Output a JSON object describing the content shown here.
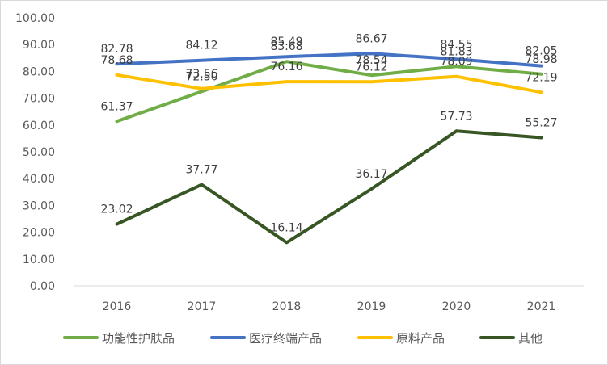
{
  "chart_data": {
    "type": "line",
    "title": "",
    "xlabel": "",
    "ylabel": "",
    "categories": [
      "2016",
      "2017",
      "2018",
      "2019",
      "2020",
      "2021"
    ],
    "ylim": [
      0,
      100
    ],
    "yticks": [
      "0.00",
      "10.00",
      "20.00",
      "30.00",
      "40.00",
      "50.00",
      "60.00",
      "70.00",
      "80.00",
      "90.00",
      "100.00"
    ],
    "grid": false,
    "legend_position": "bottom",
    "series": [
      {
        "name": "功能性护肤品",
        "color": "#70ad47",
        "values": [
          61.37,
          72.5,
          83.68,
          78.54,
          81.83,
          78.98
        ],
        "labels": [
          "61.37",
          "72.50",
          "83.68",
          "78.54",
          "81.83",
          "78.98"
        ]
      },
      {
        "name": "医疗终端产品",
        "color": "#4472c4",
        "values": [
          82.78,
          84.12,
          85.49,
          86.67,
          84.55,
          82.05
        ],
        "labels": [
          "82.78",
          "84.12",
          "85.49",
          "86.67",
          "84.55",
          "82.05"
        ]
      },
      {
        "name": "原料产品",
        "color": "#ffc000",
        "values": [
          78.68,
          73.56,
          76.16,
          76.12,
          78.09,
          72.19
        ],
        "labels": [
          "78.68",
          "73.56",
          "76.16",
          "76.12",
          "78.09",
          "72.19"
        ]
      },
      {
        "name": "其他",
        "color": "#375623",
        "values": [
          23.02,
          37.77,
          16.14,
          36.17,
          57.73,
          55.27
        ],
        "labels": [
          "23.02",
          "37.77",
          "16.14",
          "36.17",
          "57.73",
          "55.27"
        ]
      }
    ]
  }
}
